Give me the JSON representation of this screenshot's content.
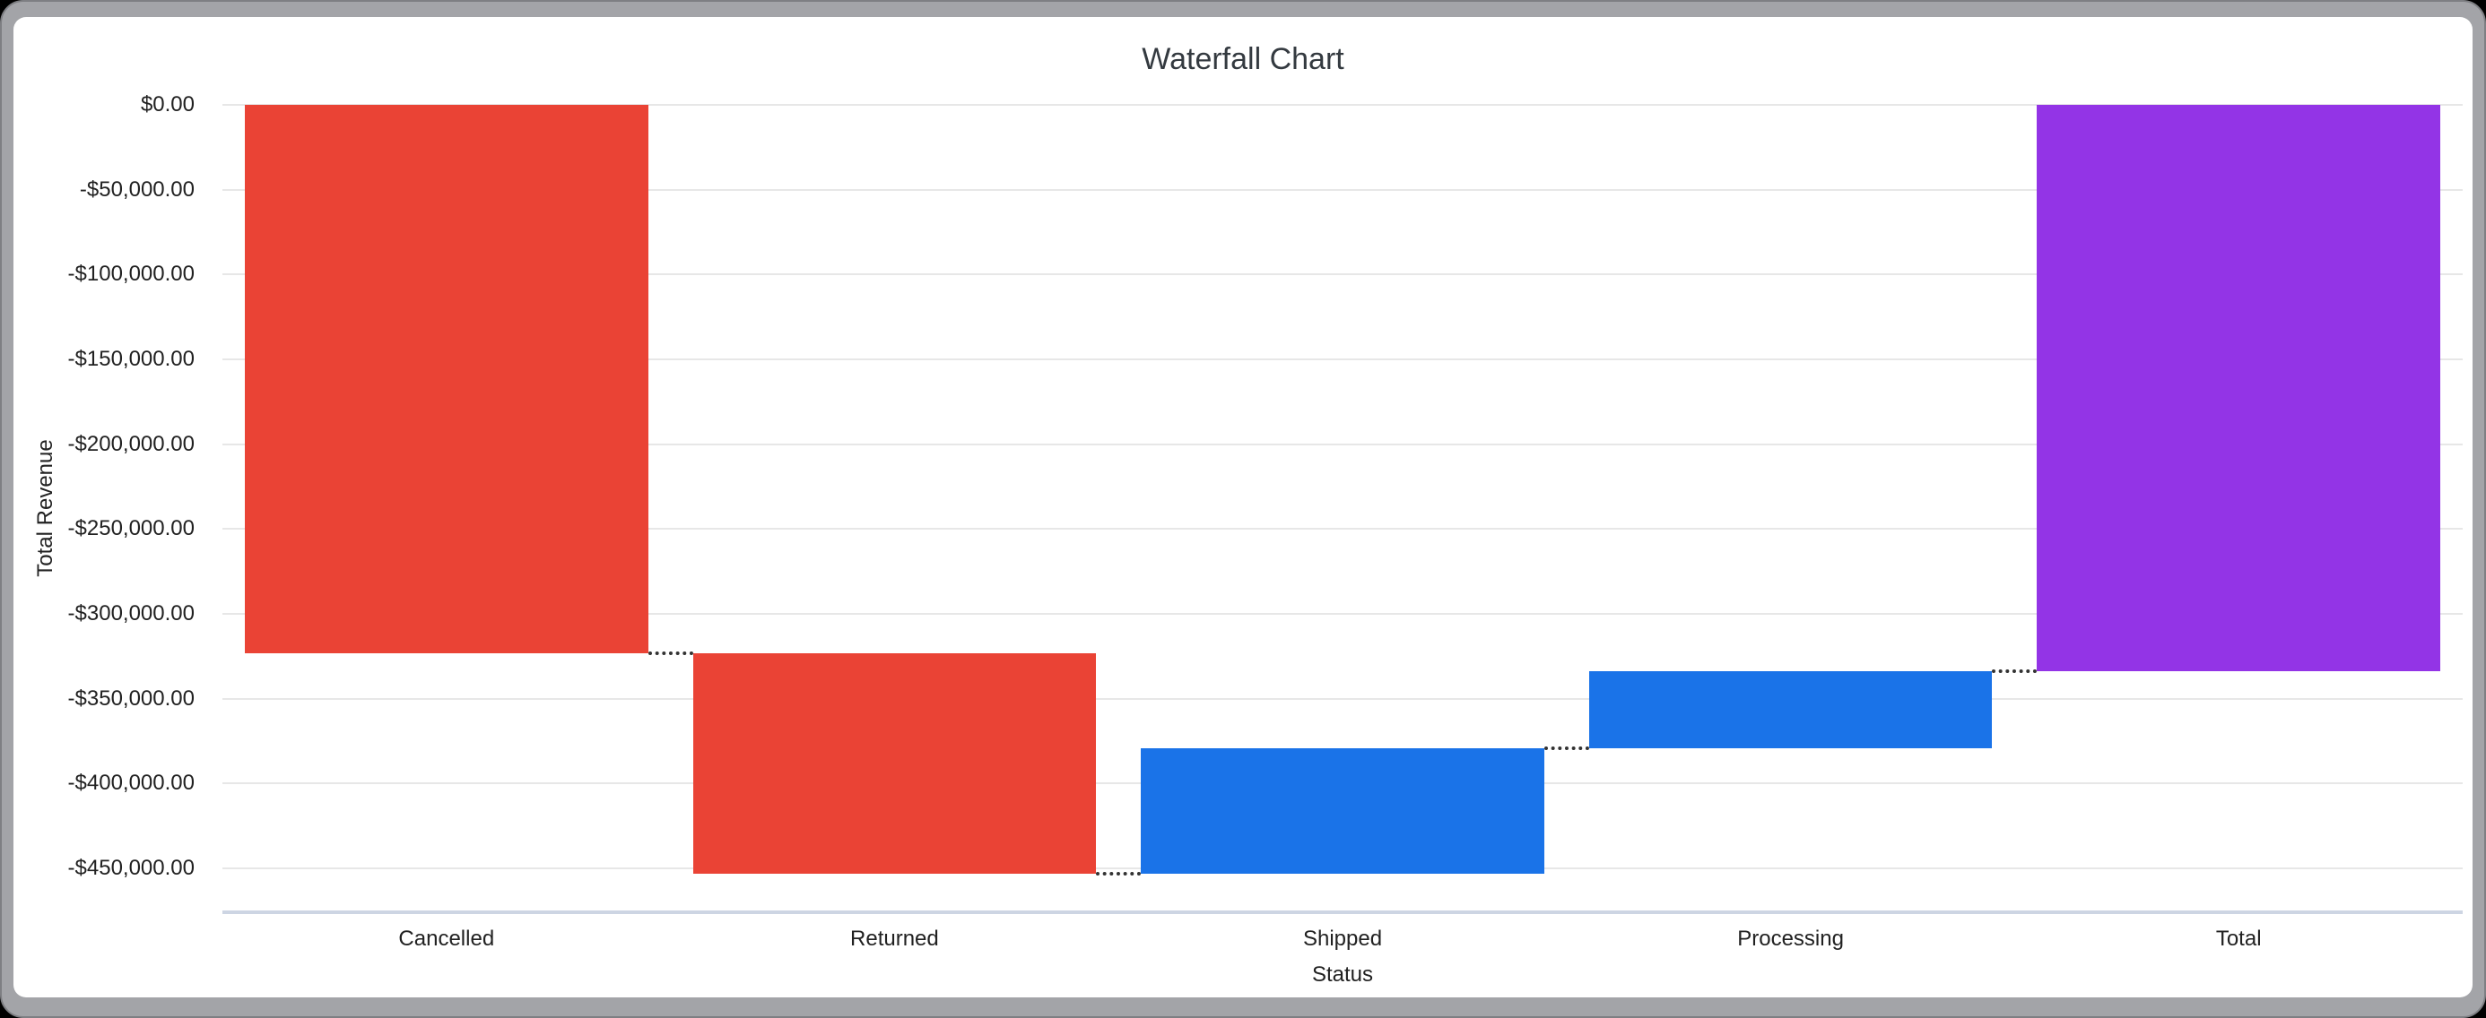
{
  "window": {
    "frame_color": "#a3a4a8",
    "content_background": "#ffffff"
  },
  "chart_data": {
    "type": "bar",
    "subtype": "waterfall",
    "title": "Waterfall Chart",
    "xlabel": "Status",
    "ylabel": "Total Revenue",
    "categories": [
      "Cancelled",
      "Returned",
      "Shipped",
      "Processing",
      "Total"
    ],
    "bars": [
      {
        "label": "Cancelled",
        "start": 0,
        "end": -323300,
        "delta": -323300,
        "role": "decrease",
        "color": "#ea4335"
      },
      {
        "label": "Returned",
        "start": -323300,
        "end": -453500,
        "delta": -130200,
        "role": "decrease",
        "color": "#ea4335"
      },
      {
        "label": "Shipped",
        "start": -453500,
        "end": -379500,
        "delta": 74000,
        "role": "increase",
        "color": "#1a73e8"
      },
      {
        "label": "Processing",
        "start": -379500,
        "end": -333700,
        "delta": 45800,
        "role": "increase",
        "color": "#1a73e8"
      },
      {
        "label": "Total",
        "start": 0,
        "end": -333700,
        "delta": -333700,
        "role": "total",
        "color": "#9334e6"
      }
    ],
    "y_ticks": [
      {
        "value": 0,
        "label": "$0.00"
      },
      {
        "value": -50000,
        "label": "-$50,000.00"
      },
      {
        "value": -100000,
        "label": "-$100,000.00"
      },
      {
        "value": -150000,
        "label": "-$150,000.00"
      },
      {
        "value": -200000,
        "label": "-$200,000.00"
      },
      {
        "value": -250000,
        "label": "-$250,000.00"
      },
      {
        "value": -300000,
        "label": "-$300,000.00"
      },
      {
        "value": -350000,
        "label": "-$350,000.00"
      },
      {
        "value": -400000,
        "label": "-$400,000.00"
      },
      {
        "value": -450000,
        "label": "-$450,000.00"
      }
    ],
    "ylim": [
      -476000,
      0
    ],
    "grid": true,
    "legend": "none",
    "connector_style": "dotted",
    "colors": {
      "decrease": "#ea4335",
      "increase": "#1a73e8",
      "total": "#9334e6",
      "gridline": "#e7e7e7",
      "baseline": "#cdd5e3",
      "connector": "#333333"
    }
  }
}
